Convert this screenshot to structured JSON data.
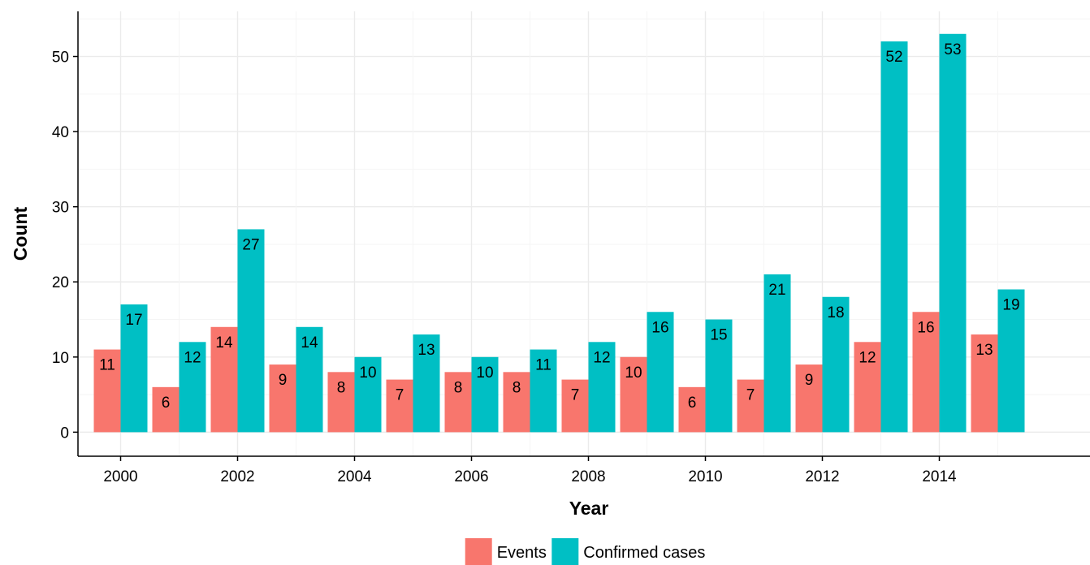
{
  "chart_data": {
    "type": "bar",
    "title": "",
    "xlabel": "Year",
    "ylabel": "Count",
    "categories": [
      "2000",
      "2001",
      "2002",
      "2003",
      "2004",
      "2005",
      "2006",
      "2007",
      "2008",
      "2009",
      "2010",
      "2011",
      "2012",
      "2013",
      "2014",
      "2015"
    ],
    "series": [
      {
        "name": "Events",
        "color": "#F8766D",
        "values": [
          11,
          6,
          14,
          9,
          8,
          7,
          8,
          8,
          7,
          10,
          6,
          7,
          9,
          12,
          16,
          13
        ]
      },
      {
        "name": "Confirmed cases",
        "color": "#00BFC4",
        "values": [
          17,
          12,
          27,
          14,
          10,
          13,
          10,
          11,
          12,
          16,
          15,
          21,
          18,
          52,
          53,
          19
        ]
      }
    ],
    "x_ticks": [
      "2000",
      "2002",
      "2004",
      "2006",
      "2008",
      "2010",
      "2012",
      "2014"
    ],
    "y_ticks": [
      0,
      10,
      20,
      30,
      40,
      50
    ],
    "ylim": [
      -3.2,
      56
    ],
    "grid": true,
    "legend_position": "bottom",
    "data_labels": true
  }
}
